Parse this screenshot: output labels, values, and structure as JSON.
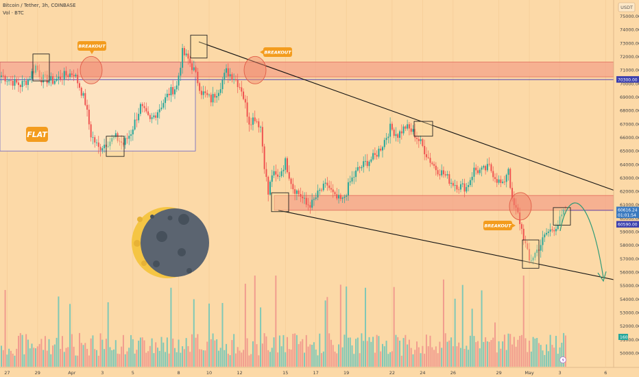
{
  "legend": {
    "title": "Bitcoin / Tether, 3h, COINBASE",
    "volume": "Vol · BTC"
  },
  "chart_data": {
    "type": "candlestick",
    "currency": "USDT",
    "ylim": [
      49500,
      75800
    ],
    "y_ticks": [
      50000,
      51000,
      52000,
      53000,
      54000,
      55000,
      56000,
      57000,
      58000,
      59000,
      60000,
      61000,
      62000,
      63000,
      64000,
      65000,
      66000,
      67000,
      68000,
      69000,
      70000,
      71000,
      72000,
      73000,
      74000,
      75000
    ],
    "x_ticks": [
      {
        "label": "27",
        "i": 3
      },
      {
        "label": "29",
        "i": 19
      },
      {
        "label": "Apr",
        "i": 37
      },
      {
        "label": "3",
        "i": 53
      },
      {
        "label": "5",
        "i": 69
      },
      {
        "label": "8",
        "i": 93
      },
      {
        "label": "10",
        "i": 109
      },
      {
        "label": "12",
        "i": 125
      },
      {
        "label": "15",
        "i": 149
      },
      {
        "label": "17",
        "i": 165
      },
      {
        "label": "19",
        "i": 181
      },
      {
        "label": "22",
        "i": 205
      },
      {
        "label": "24",
        "i": 221
      },
      {
        "label": "26",
        "i": 237
      },
      {
        "label": "29",
        "i": 261
      },
      {
        "label": "May",
        "i": 277
      },
      {
        "label": "3",
        "i": 293
      },
      {
        "label": "6",
        "i": 317
      }
    ],
    "price_labels": [
      {
        "text": "70300.00",
        "price": 70300,
        "color": "#3b3fae"
      },
      {
        "text": "60616.24",
        "price": 60616,
        "color": "#3b7ac0"
      },
      {
        "text": "01:01:54",
        "price": 60250,
        "color": "#3b7ac0"
      },
      {
        "text": "60590.00",
        "price": 59550,
        "color": "#3b3fae"
      }
    ],
    "volume_label": {
      "text": "160",
      "color": "#26a69a"
    },
    "levels": {
      "purple_line": 70300,
      "upper_zone": [
        70500,
        71600
      ],
      "lower_zone": [
        60600,
        61700
      ]
    },
    "anchors": [
      {
        "i": 0,
        "p": 70600
      },
      {
        "i": 5,
        "p": 70200
      },
      {
        "i": 10,
        "p": 69900
      },
      {
        "i": 14,
        "p": 70300
      },
      {
        "i": 18,
        "p": 71300
      },
      {
        "i": 21,
        "p": 70400
      },
      {
        "i": 27,
        "p": 70200
      },
      {
        "i": 33,
        "p": 70600
      },
      {
        "i": 38,
        "p": 70800
      },
      {
        "i": 41,
        "p": 69800
      },
      {
        "i": 44,
        "p": 68600
      },
      {
        "i": 47,
        "p": 66200
      },
      {
        "i": 51,
        "p": 65200
      },
      {
        "i": 55,
        "p": 65600
      },
      {
        "i": 60,
        "p": 66000
      },
      {
        "i": 64,
        "p": 65500
      },
      {
        "i": 68,
        "p": 66400
      },
      {
        "i": 73,
        "p": 68300
      },
      {
        "i": 78,
        "p": 67200
      },
      {
        "i": 83,
        "p": 68200
      },
      {
        "i": 88,
        "p": 69300
      },
      {
        "i": 92,
        "p": 69800
      },
      {
        "i": 95,
        "p": 72300
      },
      {
        "i": 98,
        "p": 71800
      },
      {
        "i": 101,
        "p": 71000
      },
      {
        "i": 105,
        "p": 69400
      },
      {
        "i": 110,
        "p": 68800
      },
      {
        "i": 114,
        "p": 69600
      },
      {
        "i": 118,
        "p": 70900
      },
      {
        "i": 122,
        "p": 70500
      },
      {
        "i": 126,
        "p": 69600
      },
      {
        "i": 130,
        "p": 67200
      },
      {
        "i": 133,
        "p": 67500
      },
      {
        "i": 136,
        "p": 66800
      },
      {
        "i": 138,
        "p": 64000
      },
      {
        "i": 140,
        "p": 61800
      },
      {
        "i": 142,
        "p": 63300
      },
      {
        "i": 145,
        "p": 63000
      },
      {
        "i": 149,
        "p": 64200
      },
      {
        "i": 153,
        "p": 62300
      },
      {
        "i": 157,
        "p": 61700
      },
      {
        "i": 160,
        "p": 61000
      },
      {
        "i": 163,
        "p": 61100
      },
      {
        "i": 167,
        "p": 62000
      },
      {
        "i": 171,
        "p": 62500
      },
      {
        "i": 175,
        "p": 61500
      },
      {
        "i": 179,
        "p": 61300
      },
      {
        "i": 183,
        "p": 62700
      },
      {
        "i": 187,
        "p": 63600
      },
      {
        "i": 191,
        "p": 64100
      },
      {
        "i": 196,
        "p": 64600
      },
      {
        "i": 200,
        "p": 65500
      },
      {
        "i": 204,
        "p": 66700
      },
      {
        "i": 208,
        "p": 66200
      },
      {
        "i": 212,
        "p": 66800
      },
      {
        "i": 216,
        "p": 66400
      },
      {
        "i": 220,
        "p": 65600
      },
      {
        "i": 224,
        "p": 64500
      },
      {
        "i": 228,
        "p": 63700
      },
      {
        "i": 232,
        "p": 63300
      },
      {
        "i": 236,
        "p": 62700
      },
      {
        "i": 240,
        "p": 62400
      },
      {
        "i": 244,
        "p": 62300
      },
      {
        "i": 248,
        "p": 63600
      },
      {
        "i": 252,
        "p": 63500
      },
      {
        "i": 256,
        "p": 63800
      },
      {
        "i": 260,
        "p": 62900
      },
      {
        "i": 263,
        "p": 62400
      },
      {
        "i": 266,
        "p": 63800
      },
      {
        "i": 268,
        "p": 61200
      },
      {
        "i": 271,
        "p": 60300
      },
      {
        "i": 274,
        "p": 58600
      },
      {
        "i": 277,
        "p": 56800
      },
      {
        "i": 280,
        "p": 57400
      },
      {
        "i": 283,
        "p": 58100
      },
      {
        "i": 286,
        "p": 58900
      },
      {
        "i": 289,
        "p": 59200
      },
      {
        "i": 292,
        "p": 59600
      },
      {
        "i": 296,
        "p": 60616
      }
    ]
  },
  "annotations": {
    "breakout_labels": [
      "BREAKOUT",
      "BREAKOUT",
      "BREAKOUT"
    ],
    "flat_label": "FLAT"
  }
}
